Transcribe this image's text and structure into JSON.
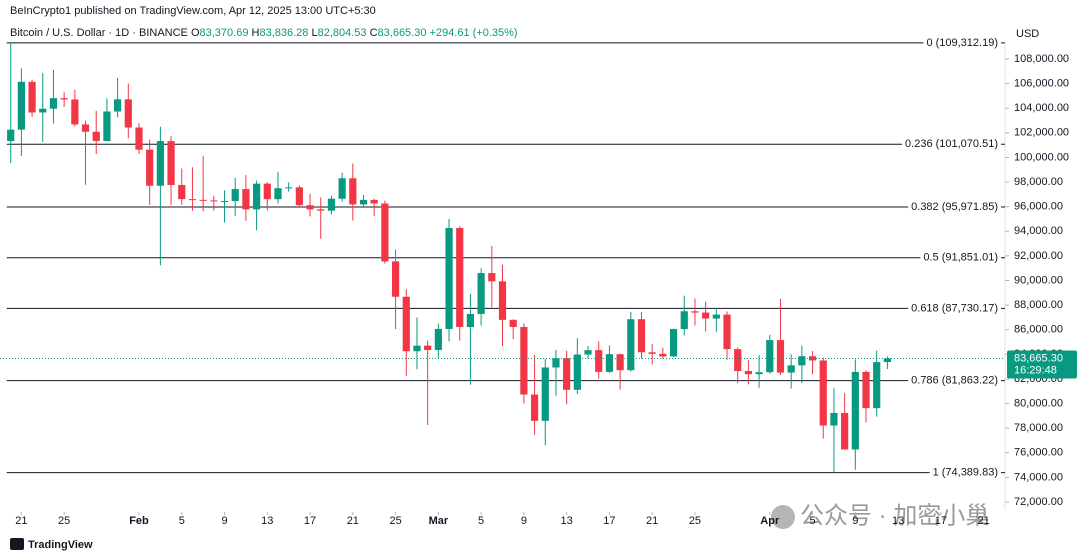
{
  "chart_data": {
    "type": "candlestick",
    "published": "BeInCrypto1 published on TradingView.com, Apr 12, 2025 13:00 UTC+5:30",
    "title": "Bitcoin / U.S. Dollar · 1D · BINANCE",
    "ohlc_legend": [
      {
        "label": "O",
        "value": "83,370.69"
      },
      {
        "label": "H",
        "value": "83,836.28"
      },
      {
        "label": "L",
        "value": "82,804.53"
      },
      {
        "label": "C",
        "value": "83,665.30"
      }
    ],
    "change": "+294.61 (+0.35%)",
    "currency": "USD",
    "up_color": "#089981",
    "down_color": "#f23645",
    "grid": false,
    "x": [
      "2025-01-20",
      "2025-01-21",
      "2025-01-22",
      "2025-01-23",
      "2025-01-24",
      "2025-01-25",
      "2025-01-26",
      "2025-01-27",
      "2025-01-28",
      "2025-01-29",
      "2025-01-30",
      "2025-01-31",
      "2025-02-01",
      "2025-02-02",
      "2025-02-03",
      "2025-02-04",
      "2025-02-05",
      "2025-02-06",
      "2025-02-07",
      "2025-02-08",
      "2025-02-09",
      "2025-02-10",
      "2025-02-11",
      "2025-02-12",
      "2025-02-13",
      "2025-02-14",
      "2025-02-15",
      "2025-02-16",
      "2025-02-17",
      "2025-02-18",
      "2025-02-19",
      "2025-02-20",
      "2025-02-21",
      "2025-02-22",
      "2025-02-23",
      "2025-02-24",
      "2025-02-25",
      "2025-02-26",
      "2025-02-27",
      "2025-02-28",
      "2025-03-01",
      "2025-03-02",
      "2025-03-03",
      "2025-03-04",
      "2025-03-05",
      "2025-03-06",
      "2025-03-07",
      "2025-03-08",
      "2025-03-09",
      "2025-03-10",
      "2025-03-11",
      "2025-03-12",
      "2025-03-13",
      "2025-03-14",
      "2025-03-15",
      "2025-03-16",
      "2025-03-17",
      "2025-03-18",
      "2025-03-19",
      "2025-03-20",
      "2025-03-21",
      "2025-03-22",
      "2025-03-23",
      "2025-03-24",
      "2025-03-25",
      "2025-03-26",
      "2025-03-27",
      "2025-03-28",
      "2025-03-29",
      "2025-03-30",
      "2025-03-31",
      "2025-04-01",
      "2025-04-02",
      "2025-04-03",
      "2025-04-04",
      "2025-04-05",
      "2025-04-06",
      "2025-04-07",
      "2025-04-08",
      "2025-04-09",
      "2025-04-10",
      "2025-04-11",
      "2025-04-12"
    ],
    "open": [
      101331,
      102260,
      106144,
      103653,
      103960,
      104819,
      104714,
      102682,
      102087,
      101332,
      103733,
      104722,
      102429,
      100635,
      97700,
      101328,
      97763,
      96613,
      96554,
      96506,
      96444,
      96462,
      97430,
      95778,
      97869,
      96608,
      97500,
      97570,
      96118,
      95780,
      95671,
      96644,
      98305,
      96181,
      96551,
      96258,
      91552,
      88680,
      84250,
      84708,
      84350,
      86064,
      94270,
      86220,
      87281,
      90606,
      89931,
      86801,
      86222,
      80734,
      78595,
      82932,
      83680,
      81115,
      83983,
      84338,
      82574,
      84010,
      82715,
      86854,
      84167,
      84043,
      83832,
      86054,
      87498,
      87392,
      86909,
      87232,
      84424,
      82648,
      82389,
      82550,
      85158,
      82516,
      83102,
      83843,
      83504,
      78214,
      79235,
      76271,
      82573,
      79626,
      83370.69
    ],
    "high": [
      109312.19,
      107240,
      106327,
      106850,
      107120,
      105286,
      105500,
      103000,
      103784,
      104800,
      106457,
      106012,
      102783,
      101456,
      102500,
      101740,
      99100,
      99200,
      100137,
      96880,
      97323,
      98345,
      98564,
      98119,
      98000,
      98826,
      97972,
      97730,
      97046,
      96753,
      96899,
      98756,
      99508,
      96948,
      96650,
      96502,
      92530,
      89286,
      87000,
      85120,
      86500,
      95000,
      94416,
      88911,
      91000,
      92810,
      91283,
      86847,
      86527,
      83955,
      83617,
      84358,
      84300,
      85309,
      84672,
      85051,
      84725,
      84050,
      87453,
      87443,
      84850,
      84539,
      86094,
      88765,
      88542,
      88292,
      87786,
      87489,
      84567,
      83534,
      83943,
      85579,
      88500,
      83998,
      84720,
      84266,
      83748,
      81243,
      80867,
      83588,
      82700,
      84300,
      83836.28
    ],
    "low": [
      99550,
      100120,
      103300,
      101262,
      102750,
      104106,
      102520,
      97777,
      100278,
      101328,
      103268,
      101560,
      100279,
      96150,
      91231,
      96150,
      96155,
      95662,
      95620,
      95688,
      94713,
      95256,
      94848,
      94088,
      95705,
      96252,
      97223,
      96046,
      95205,
      93388,
      95377,
      96400,
      94871,
      96041,
      95227,
      91371,
      86050,
      82256,
      82786,
      78258,
      83700,
      85050,
      85117,
      81529,
      86334,
      87836,
      84667,
      85247,
      80000,
      77459,
      76606,
      80635,
      79939,
      80766,
      83639,
      82017,
      82492,
      81134,
      82600,
      83647,
      83175,
      83647,
      83774,
      85541,
      86346,
      85861,
      85837,
      83557,
      81644,
      81565,
      81279,
      82432,
      82320,
      81211,
      81659,
      82379,
      77153,
      74389.83,
      76239,
      74620,
      78456,
      78938,
      82804.53
    ],
    "close": [
      102260,
      106144,
      103653,
      103960,
      104819,
      104714,
      102682,
      102087,
      101332,
      103733,
      104722,
      102429,
      100635,
      97700,
      101328,
      97763,
      96613,
      96554,
      96506,
      96444,
      96462,
      97430,
      95778,
      97869,
      96608,
      97500,
      97570,
      96118,
      95780,
      95671,
      96644,
      98305,
      96181,
      96551,
      96258,
      91552,
      88680,
      84250,
      84708,
      84350,
      86064,
      94270,
      86220,
      87281,
      90606,
      89931,
      86801,
      86222,
      80734,
      78595,
      82932,
      83680,
      81115,
      83983,
      84338,
      82574,
      84010,
      82715,
      86854,
      84167,
      84043,
      83832,
      86054,
      87498,
      87392,
      86909,
      87232,
      84424,
      82648,
      82389,
      82550,
      85158,
      82516,
      83102,
      83843,
      83504,
      78214,
      79235,
      76271,
      82573,
      79626,
      83370.69,
      83665.3
    ],
    "xlim": [
      "2025-01-19",
      "2025-04-23"
    ],
    "xticks": [
      {
        "value": "2025-01-21",
        "label": "21"
      },
      {
        "value": "2025-01-25",
        "label": "25"
      },
      {
        "value": "2025-02-01",
        "label": "Feb"
      },
      {
        "value": "2025-02-05",
        "label": "5"
      },
      {
        "value": "2025-02-09",
        "label": "9"
      },
      {
        "value": "2025-02-13",
        "label": "13"
      },
      {
        "value": "2025-02-17",
        "label": "17"
      },
      {
        "value": "2025-02-21",
        "label": "21"
      },
      {
        "value": "2025-02-25",
        "label": "25"
      },
      {
        "value": "2025-03-01",
        "label": "Mar"
      },
      {
        "value": "2025-03-05",
        "label": "5"
      },
      {
        "value": "2025-03-09",
        "label": "9"
      },
      {
        "value": "2025-03-13",
        "label": "13"
      },
      {
        "value": "2025-03-17",
        "label": "17"
      },
      {
        "value": "2025-03-21",
        "label": "21"
      },
      {
        "value": "2025-03-25",
        "label": "25"
      },
      {
        "value": "2025-04-01",
        "label": "Apr"
      },
      {
        "value": "2025-04-05",
        "label": "5"
      },
      {
        "value": "2025-04-09",
        "label": "9"
      },
      {
        "value": "2025-04-13",
        "label": "13"
      },
      {
        "value": "2025-04-17",
        "label": "17"
      },
      {
        "value": "2025-04-21",
        "label": "21"
      }
    ],
    "ylim": [
      71350,
      109300
    ],
    "yticks": [
      {
        "value": 72000,
        "label": "72,000.00"
      },
      {
        "value": 74000,
        "label": "74,000.00"
      },
      {
        "value": 76000,
        "label": "76,000.00"
      },
      {
        "value": 78000,
        "label": "78,000.00"
      },
      {
        "value": 80000,
        "label": "80,000.00"
      },
      {
        "value": 82000,
        "label": "82,000.00"
      },
      {
        "value": 84000,
        "label": "84,000.00"
      },
      {
        "value": 86000,
        "label": "86,000.00"
      },
      {
        "value": 88000,
        "label": "88,000.00"
      },
      {
        "value": 90000,
        "label": "90,000.00"
      },
      {
        "value": 92000,
        "label": "92,000.00"
      },
      {
        "value": 94000,
        "label": "94,000.00"
      },
      {
        "value": 96000,
        "label": "96,000.00"
      },
      {
        "value": 98000,
        "label": "98,000.00"
      },
      {
        "value": 100000,
        "label": "100,000.00"
      },
      {
        "value": 102000,
        "label": "102,000.00"
      },
      {
        "value": 104000,
        "label": "104,000.00"
      },
      {
        "value": 106000,
        "label": "106,000.00"
      },
      {
        "value": 108000,
        "label": "108,000.00"
      }
    ],
    "fib_levels": [
      {
        "value": 109312.19,
        "label": "0 (109,312.19)"
      },
      {
        "value": 101070.51,
        "label": "0.236 (101,070.51)"
      },
      {
        "value": 95971.85,
        "label": "0.382 (95,971.85)"
      },
      {
        "value": 91851.01,
        "label": "0.5 (91,851.01)"
      },
      {
        "value": 87730.17,
        "label": "0.618 (87,730.17)"
      },
      {
        "value": 81863.22,
        "label": "0.786 (81,863.22)"
      },
      {
        "value": 74389.83,
        "label": "1 (74,389.83)"
      }
    ],
    "last_price": {
      "value": 83665.3,
      "label": "83,665.30"
    },
    "countdown": "16:29:48",
    "watermark": "公众号 · 加密小巢",
    "brand": "TradingView"
  }
}
